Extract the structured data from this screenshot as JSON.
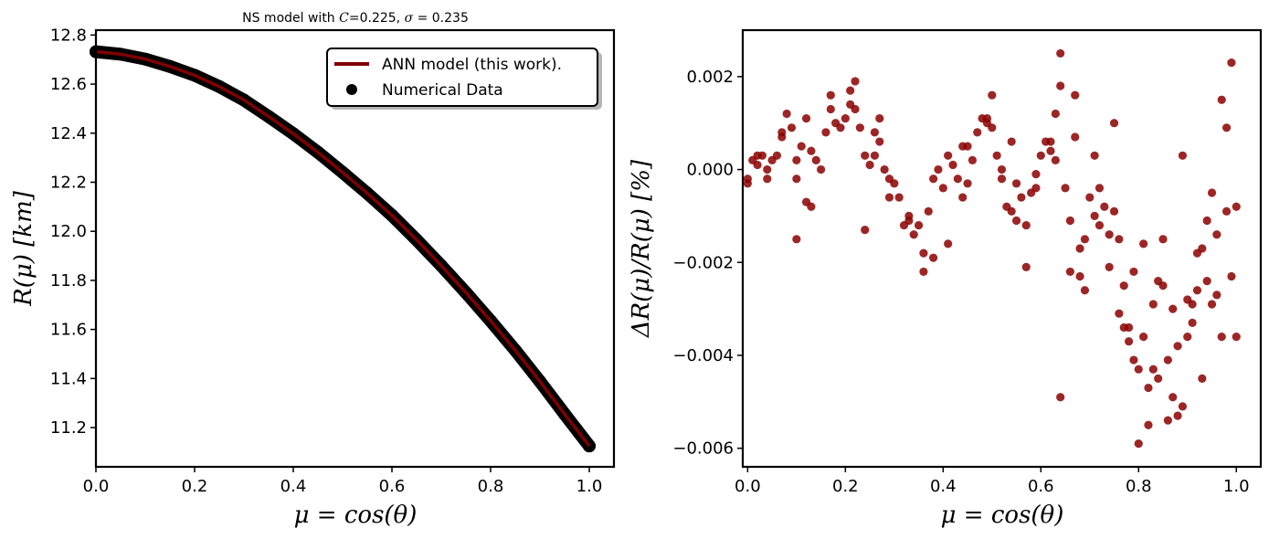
{
  "chart_data": [
    {
      "type": "line",
      "title": "NS model with C=0.225, σ = 0.235",
      "xlabel": "μ = cos(θ)",
      "ylabel": "R(μ) [km]",
      "xlim": [
        0.0,
        1.05
      ],
      "ylim": [
        11.04,
        12.82
      ],
      "xticks": [
        0.0,
        0.2,
        0.4,
        0.6,
        0.8,
        1.0
      ],
      "xtick_labels": [
        "0.0",
        "0.2",
        "0.4",
        "0.6",
        "0.8",
        "1.0"
      ],
      "yticks": [
        11.2,
        11.4,
        11.6,
        11.8,
        12.0,
        12.2,
        12.4,
        12.6,
        12.8
      ],
      "ytick_labels": [
        "11.2",
        "11.4",
        "11.6",
        "11.8",
        "12.0",
        "12.2",
        "12.4",
        "12.6",
        "12.8"
      ],
      "legend_position": "top-right",
      "grid": false,
      "series": [
        {
          "name": "ANN model (this work).",
          "kind": "line",
          "color": "#7f0000",
          "x": [
            0.0,
            0.05,
            0.1,
            0.15,
            0.2,
            0.25,
            0.3,
            0.35,
            0.4,
            0.45,
            0.5,
            0.55,
            0.6,
            0.65,
            0.7,
            0.75,
            0.8,
            0.85,
            0.9,
            0.95,
            1.0
          ],
          "y": [
            12.732,
            12.722,
            12.702,
            12.672,
            12.636,
            12.59,
            12.535,
            12.468,
            12.398,
            12.322,
            12.24,
            12.155,
            12.065,
            11.965,
            11.86,
            11.75,
            11.635,
            11.515,
            11.388,
            11.255,
            11.125
          ]
        },
        {
          "name": "Numerical Data",
          "kind": "scatter",
          "color": "#000000",
          "x": [
            0.0,
            0.05,
            0.1,
            0.15,
            0.2,
            0.25,
            0.3,
            0.35,
            0.4,
            0.45,
            0.5,
            0.55,
            0.6,
            0.65,
            0.7,
            0.75,
            0.8,
            0.85,
            0.9,
            0.95,
            1.0
          ],
          "y": [
            12.732,
            12.722,
            12.702,
            12.672,
            12.636,
            12.59,
            12.535,
            12.468,
            12.398,
            12.322,
            12.24,
            12.155,
            12.065,
            11.965,
            11.86,
            11.75,
            11.635,
            11.515,
            11.388,
            11.255,
            11.125
          ]
        }
      ]
    },
    {
      "type": "scatter",
      "title": "",
      "xlabel": "μ = cos(θ)",
      "ylabel": "ΔR(μ)/R(μ) [%]",
      "xlim": [
        -0.01,
        1.05
      ],
      "ylim": [
        -0.0064,
        0.003
      ],
      "xticks": [
        0.0,
        0.2,
        0.4,
        0.6,
        0.8,
        1.0
      ],
      "xtick_labels": [
        "0.0",
        "0.2",
        "0.4",
        "0.6",
        "0.8",
        "1.0"
      ],
      "yticks": [
        -0.006,
        -0.004,
        -0.002,
        0.0,
        0.002
      ],
      "ytick_labels": [
        "−0.006",
        "−0.004",
        "−0.002",
        "0.000",
        "0.002"
      ],
      "grid": false,
      "series": [
        {
          "color": "#8b0000",
          "x": [
            0.0,
            0.01,
            0.02,
            0.03,
            0.04,
            0.05,
            0.06,
            0.07,
            0.08,
            0.09,
            0.1,
            0.11,
            0.12,
            0.13,
            0.14,
            0.15,
            0.16,
            0.17,
            0.18,
            0.19,
            0.2,
            0.21,
            0.22,
            0.23,
            0.24,
            0.25,
            0.26,
            0.27,
            0.28,
            0.29,
            0.3,
            0.31,
            0.32,
            0.33,
            0.34,
            0.35,
            0.36,
            0.37,
            0.38,
            0.39,
            0.4,
            0.41,
            0.42,
            0.43,
            0.44,
            0.45,
            0.46,
            0.47,
            0.48,
            0.49,
            0.5,
            0.51,
            0.52,
            0.53,
            0.54,
            0.55,
            0.56,
            0.57,
            0.58,
            0.59,
            0.6,
            0.61,
            0.62,
            0.63,
            0.64,
            0.65,
            0.66,
            0.67,
            0.68,
            0.69,
            0.7,
            0.71,
            0.72,
            0.73,
            0.74,
            0.75,
            0.76,
            0.77,
            0.78,
            0.79,
            0.8,
            0.81,
            0.82,
            0.83,
            0.84,
            0.85,
            0.86,
            0.87,
            0.88,
            0.89,
            0.9,
            0.91,
            0.92,
            0.93,
            0.94,
            0.95,
            0.96,
            0.97,
            0.98,
            0.99,
            1.0,
            0.0,
            0.02,
            0.04,
            0.07,
            0.1,
            0.13,
            0.17,
            0.21,
            0.22,
            0.24,
            0.27,
            0.29,
            0.33,
            0.36,
            0.41,
            0.45,
            0.49,
            0.5,
            0.54,
            0.55,
            0.59,
            0.62,
            0.64,
            0.64,
            0.66,
            0.67,
            0.69,
            0.72,
            0.74,
            0.75,
            0.77,
            0.79,
            0.8,
            0.81,
            0.82,
            0.83,
            0.85,
            0.86,
            0.87,
            0.88,
            0.89,
            0.9,
            0.91,
            0.93,
            0.95,
            0.97,
            0.98,
            0.99,
            1.0,
            0.1,
            0.12,
            0.26,
            0.38,
            0.44,
            0.52,
            0.57,
            0.63,
            0.68,
            0.71,
            0.76,
            0.78,
            0.84,
            0.92,
            0.94,
            0.96
          ],
          "y": [
            -0.0003,
            0.0002,
            0.0001,
            0.0003,
            0.0,
            0.0002,
            0.0003,
            0.0007,
            0.0012,
            0.0009,
            0.0002,
            0.0005,
            0.0011,
            0.0004,
            0.0002,
            0.0,
            0.0008,
            0.0013,
            0.001,
            0.0009,
            0.0011,
            0.0014,
            0.0019,
            0.0009,
            0.0003,
            0.0001,
            0.0008,
            0.0006,
            0.0,
            -0.0002,
            -0.0003,
            -0.0006,
            -0.0012,
            -0.0011,
            -0.0014,
            -0.0012,
            -0.0018,
            -0.0009,
            -0.0002,
            0.0,
            -0.0004,
            0.0003,
            0.0001,
            -0.0002,
            -0.0006,
            -0.0003,
            0.0002,
            0.0008,
            0.0011,
            0.001,
            0.0009,
            0.0003,
            -0.0002,
            -0.0008,
            -0.0009,
            -0.0003,
            -0.0006,
            -0.0012,
            -0.0005,
            -0.0001,
            0.0003,
            0.0006,
            0.0004,
            0.0012,
            0.0018,
            -0.0004,
            -0.0011,
            0.0007,
            -0.0023,
            -0.0015,
            -0.0006,
            0.0003,
            -0.0012,
            -0.0008,
            -0.0021,
            -0.0009,
            -0.0015,
            -0.0034,
            -0.0037,
            -0.0022,
            -0.0043,
            -0.0036,
            -0.0047,
            -0.0029,
            -0.0045,
            -0.0025,
            -0.0041,
            -0.0049,
            -0.0038,
            -0.0051,
            -0.0028,
            -0.0033,
            -0.0026,
            -0.0017,
            -0.0024,
            -0.0029,
            -0.0014,
            -0.0036,
            -0.0009,
            -0.0023,
            -0.0008,
            -0.0002,
            0.0003,
            -0.0002,
            0.0008,
            -0.0015,
            -0.0008,
            0.0016,
            0.0017,
            0.0013,
            -0.0013,
            0.0011,
            -0.0006,
            -0.001,
            -0.0022,
            -0.0016,
            0.0005,
            0.0011,
            0.0016,
            0.0006,
            -0.0011,
            -0.0004,
            0.0006,
            0.0025,
            -0.0049,
            -0.0022,
            0.0016,
            -0.0026,
            -0.0004,
            -0.0014,
            0.001,
            -0.0025,
            -0.0041,
            -0.0059,
            -0.0016,
            -0.0055,
            -0.0043,
            -0.0015,
            -0.0054,
            -0.003,
            -0.0053,
            0.0003,
            -0.0036,
            -0.0029,
            -0.0045,
            -0.0005,
            0.0015,
            0.0009,
            0.0023,
            -0.0036,
            -0.0002,
            -0.0007,
            0.0003,
            -0.0019,
            0.0005,
            0.0,
            -0.0021,
            0.0002,
            -0.0017,
            -0.001,
            -0.0031,
            -0.0034,
            -0.0024,
            -0.0018,
            -0.0011,
            -0.0027
          ]
        }
      ]
    }
  ],
  "title_parts": {
    "prefix": "NS model with ",
    "c_symbol": "C",
    "c_value": "=0.225, ",
    "sigma_symbol": "σ",
    "sigma_value": " = 0.235"
  },
  "legend": {
    "line_label": "ANN model (this work).",
    "scatter_label": "Numerical Data"
  },
  "left_labels": {
    "xlabel": "μ = cos(θ)",
    "ylabel": "R(μ) [km]"
  },
  "right_labels": {
    "xlabel": "μ = cos(θ)",
    "ylabel": "ΔR(μ)/R(μ) [%]"
  }
}
